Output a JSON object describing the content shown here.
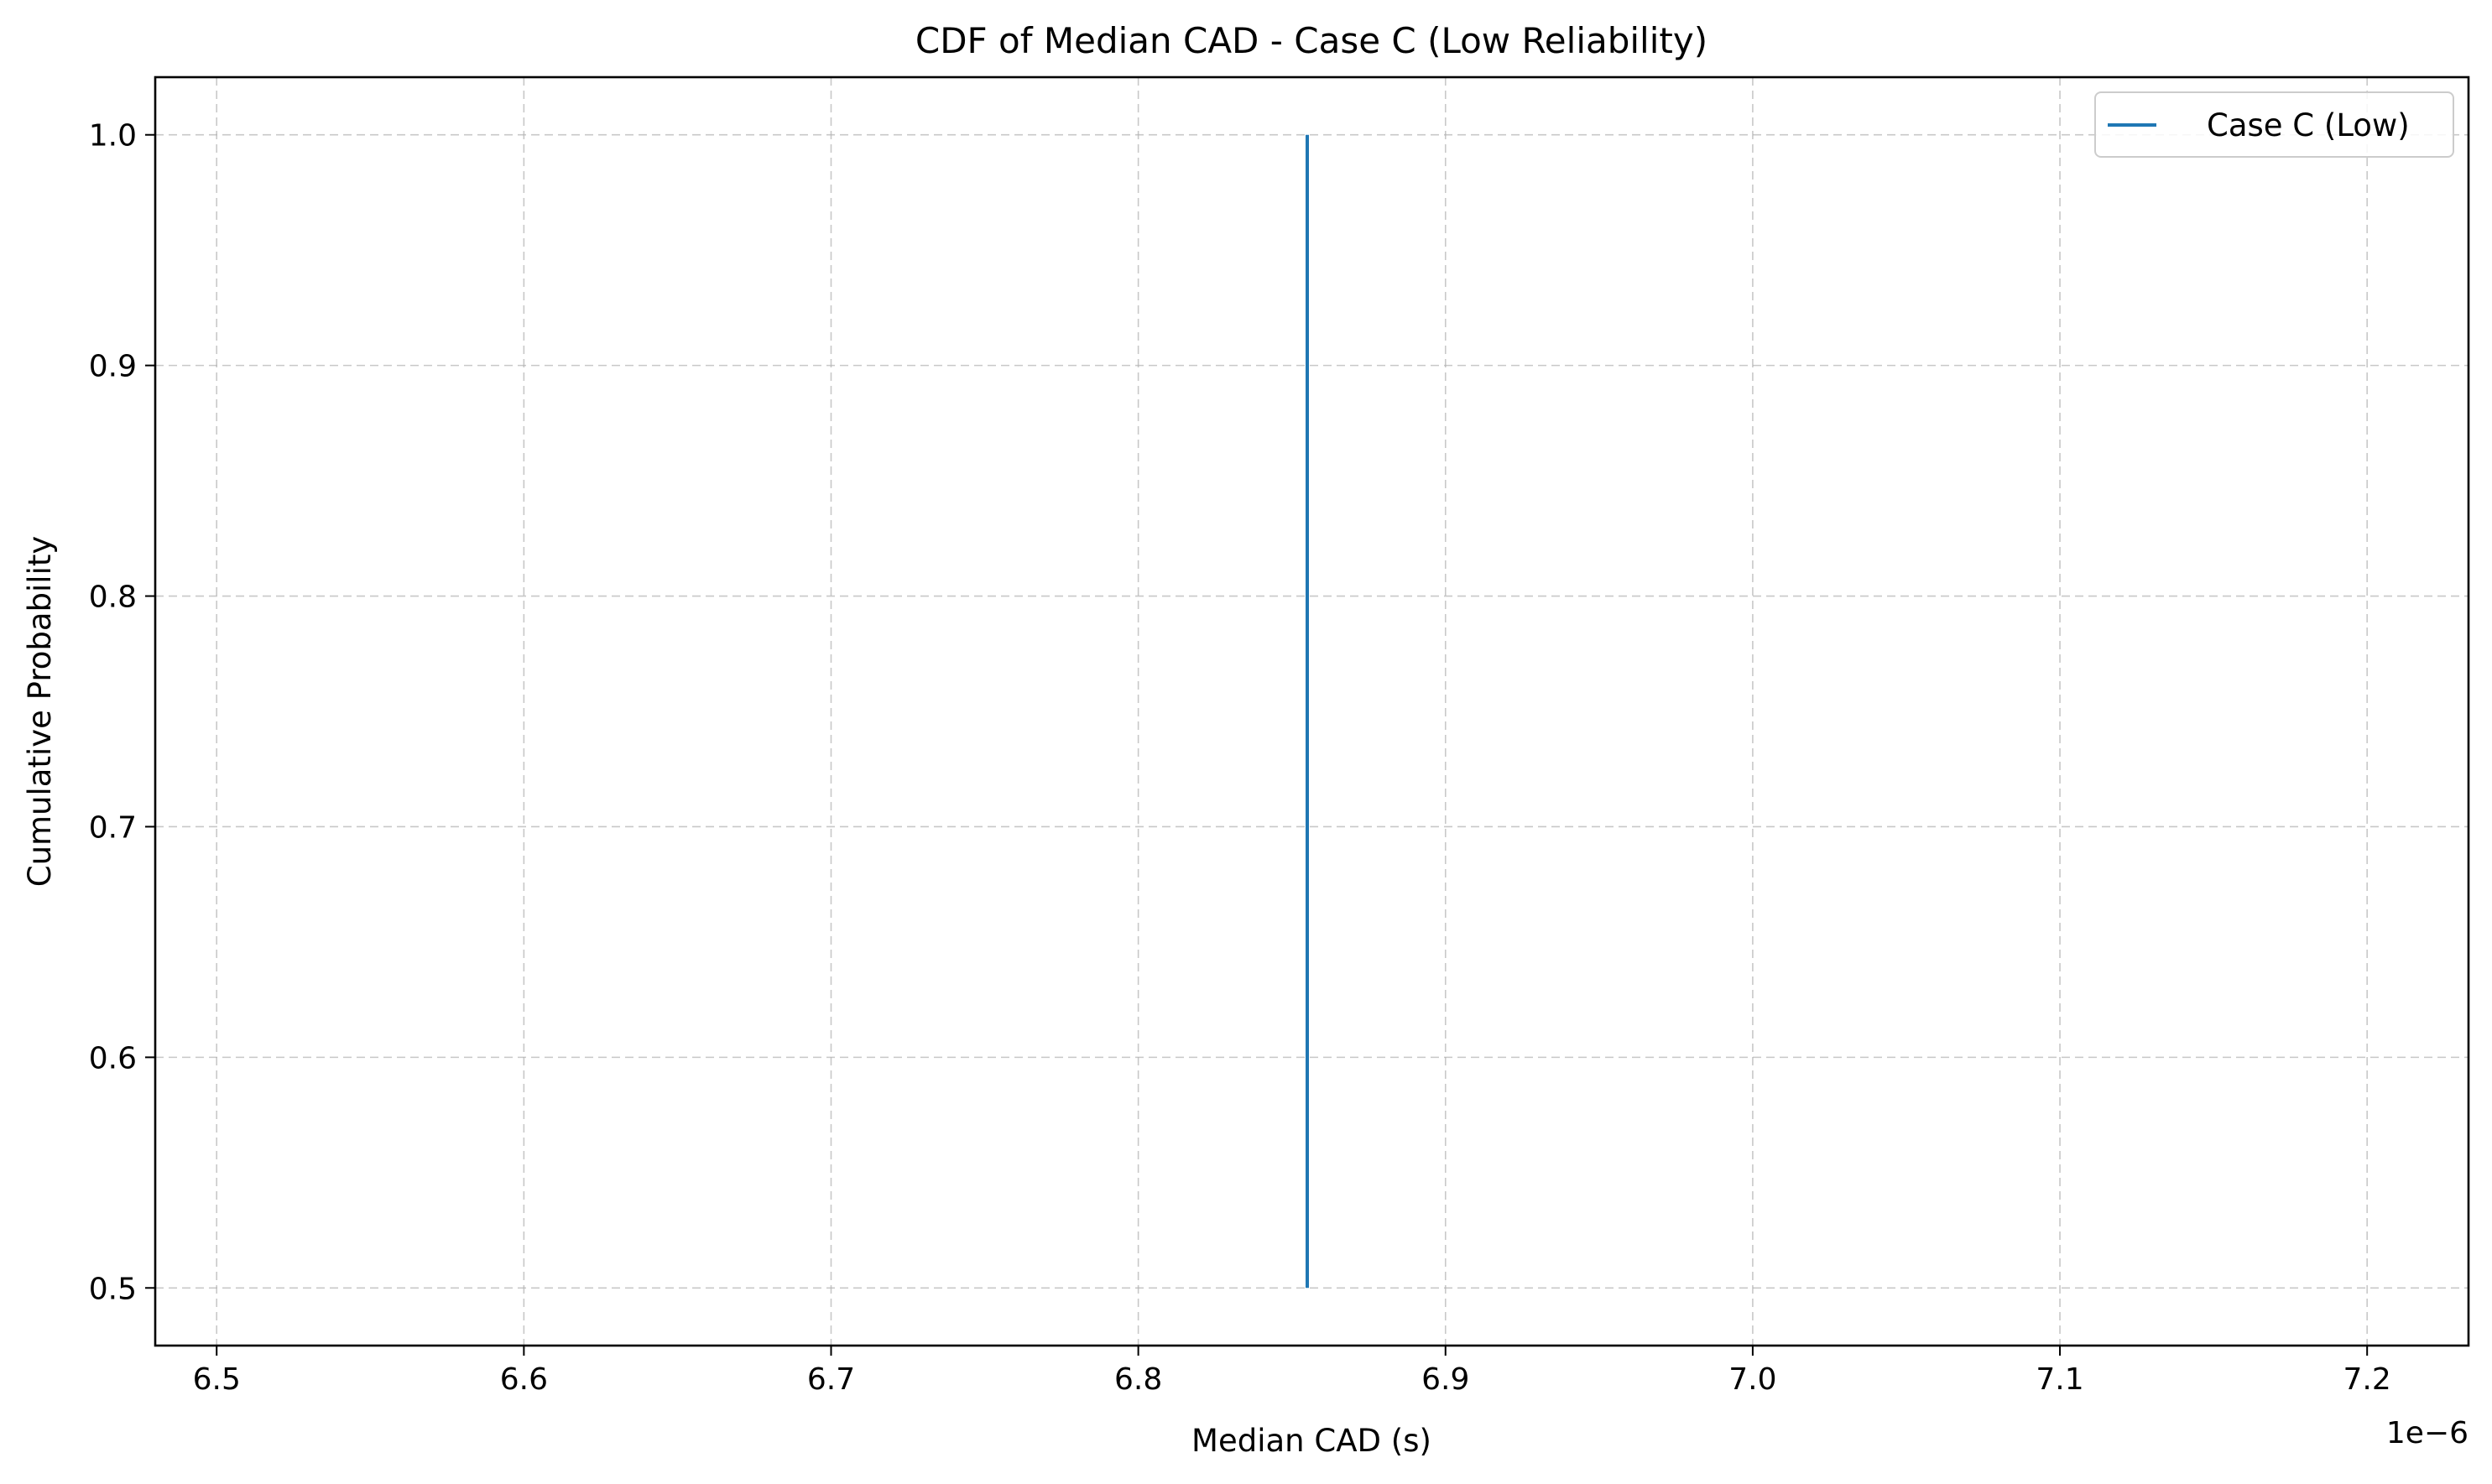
{
  "chart_data": {
    "type": "line",
    "title": "CDF of Median CAD - Case C (Low Reliability)",
    "xlabel": "Median CAD (s)",
    "ylabel": "Cumulative Probability",
    "x_offset_label": "1e−6",
    "x_tick_labels": [
      "6.5",
      "6.6",
      "6.7",
      "6.8",
      "6.9",
      "7.0",
      "7.1",
      "7.2"
    ],
    "x_ticks": [
      6.5,
      6.6,
      6.7,
      6.8,
      6.9,
      7.0,
      7.1,
      7.2
    ],
    "y_tick_labels": [
      "0.5",
      "0.6",
      "0.7",
      "0.8",
      "0.9",
      "1.0"
    ],
    "y_ticks": [
      0.5,
      0.6,
      0.7,
      0.8,
      0.9,
      1.0
    ],
    "xlim": [
      6.48,
      7.233
    ],
    "ylim": [
      0.475,
      1.025
    ],
    "grid": true,
    "legend_position": "upper right",
    "series": [
      {
        "name": "Case C (Low)",
        "color": "#1f77b4",
        "x": [
          6.855,
          6.855
        ],
        "y": [
          0.5,
          1.0
        ]
      }
    ]
  }
}
